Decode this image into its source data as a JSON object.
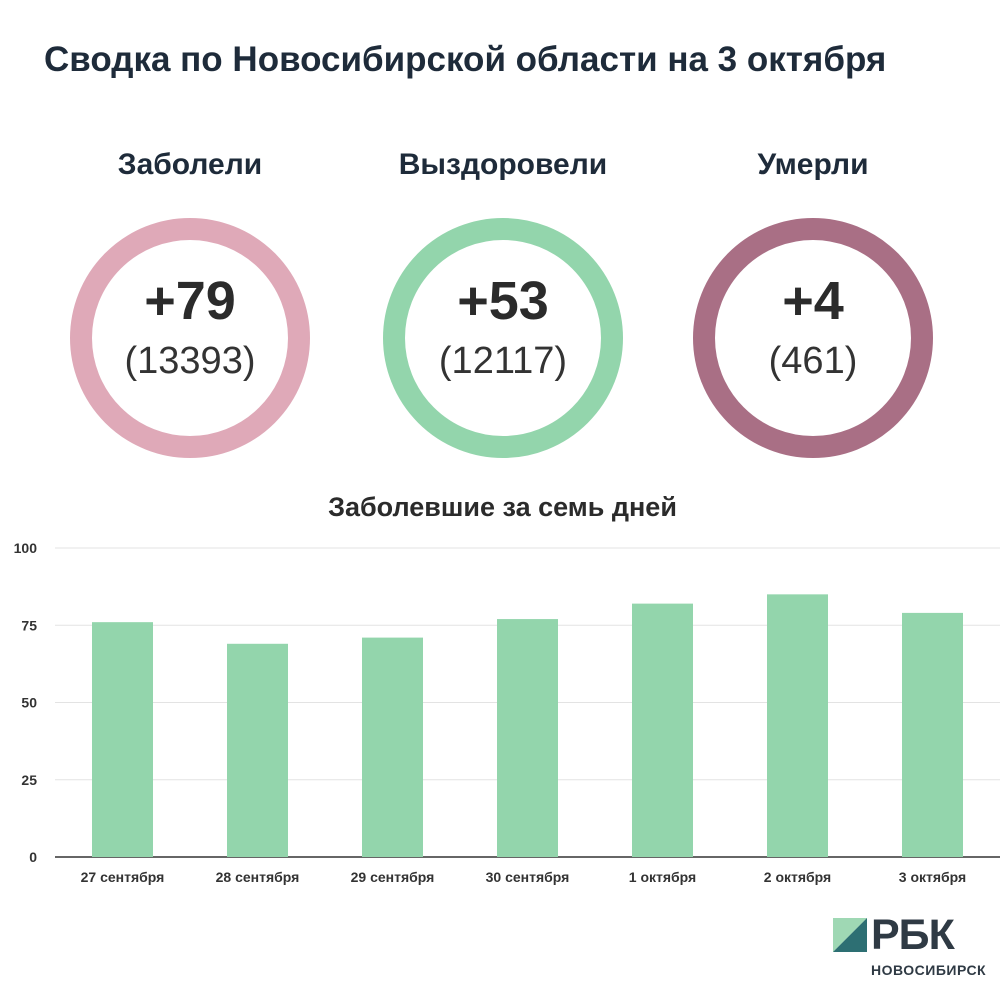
{
  "title": "Сводка по Новосибирской области на 3 октября",
  "stats": [
    {
      "label": "Заболели",
      "delta": "+79",
      "total": "(13393)",
      "color": "#dfa9b8"
    },
    {
      "label": "Выздоровели",
      "delta": "+53",
      "total": "(12117)",
      "color": "#93d5ac"
    },
    {
      "label": "Умерли",
      "delta": "+4",
      "total": "(461)",
      "color": "#a96f85"
    }
  ],
  "chart": {
    "title": "Заболевшие за семь дней"
  },
  "chart_data": {
    "type": "bar",
    "title": "Заболевшие за семь дней",
    "categories": [
      "27 сентября",
      "28 сентября",
      "29 сентября",
      "30 сентября",
      "1 октября",
      "2 октября",
      "3 октября"
    ],
    "values": [
      76,
      69,
      71,
      77,
      82,
      85,
      79
    ],
    "ylim": [
      0,
      100
    ],
    "yticks": [
      0,
      25,
      50,
      75,
      100
    ],
    "grid": true,
    "bar_color": "#93d5ac",
    "xlabel": "",
    "ylabel": ""
  },
  "logo": {
    "name": "РБК",
    "subtitle": "НОВОСИБИРСК",
    "colors": [
      "#9fd8b4",
      "#2d6f73"
    ]
  }
}
